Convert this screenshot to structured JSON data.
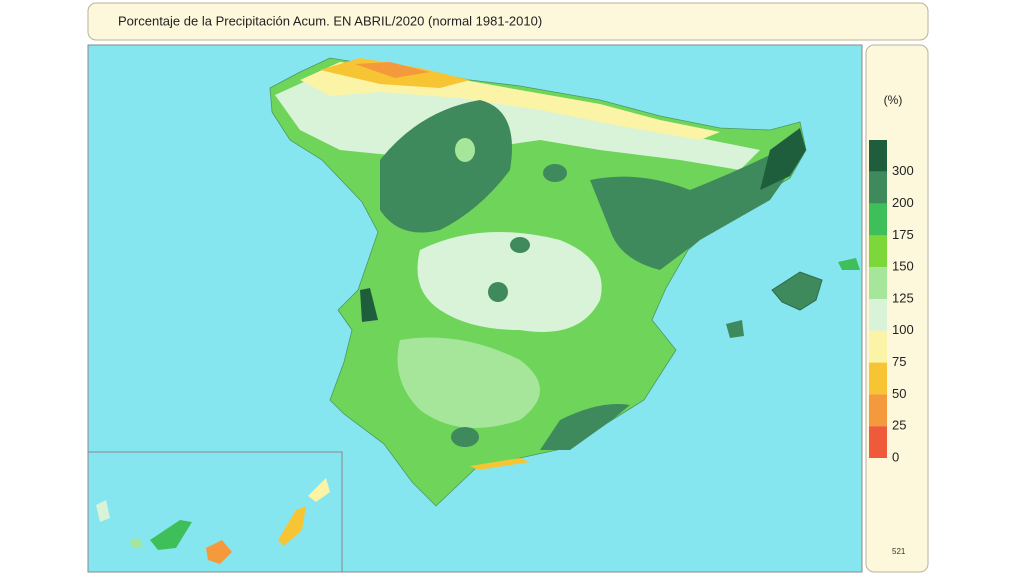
{
  "title": "Porcentaje de la Precipitación Acum. EN  ABRIL/2020  (normal 1981-2010)",
  "legend": {
    "unit": "(%)",
    "items": [
      {
        "label": "300",
        "color": "#1f5e3c"
      },
      {
        "label": "200",
        "color": "#3f8a5c"
      },
      {
        "label": "175",
        "color": "#3fbf5a"
      },
      {
        "label": "150",
        "color": "#7cd83a"
      },
      {
        "label": "125",
        "color": "#a6e69a"
      },
      {
        "label": "100",
        "color": "#d8f3d8"
      },
      {
        "label": "75",
        "color": "#fbf3a6"
      },
      {
        "label": "50",
        "color": "#f7c533"
      },
      {
        "label": "25",
        "color": "#f59a3c"
      },
      {
        "label": "0",
        "color": "#ef5a3a"
      }
    ]
  },
  "code": "521"
}
